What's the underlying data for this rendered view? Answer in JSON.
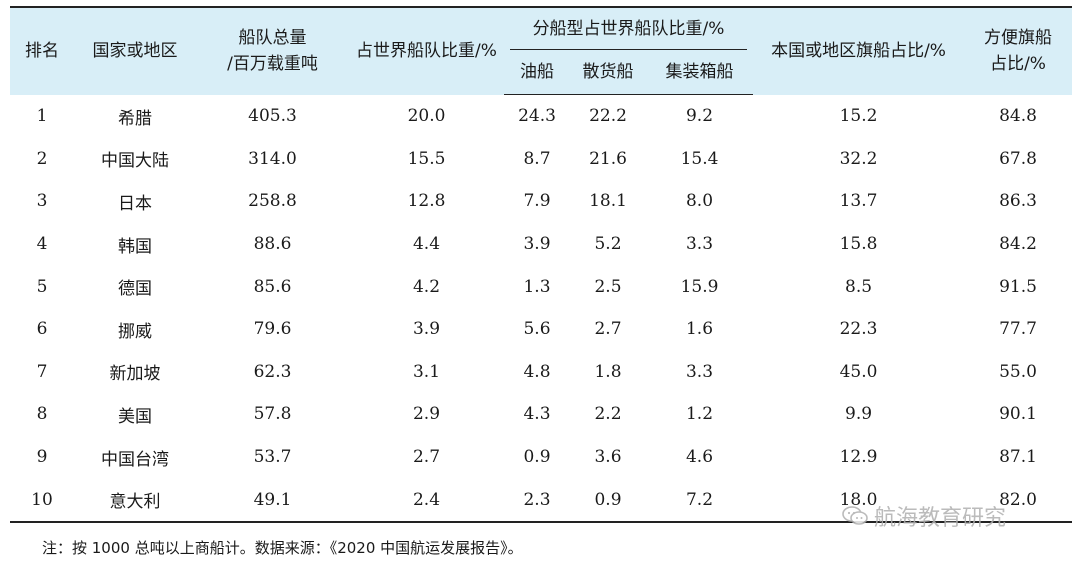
{
  "table": {
    "headers": {
      "rank": "排名",
      "country": "国家或地区",
      "fleet_total_line1": "船队总量",
      "fleet_total_line2": "/百万载重吨",
      "world_share": "占世界船队比重/%",
      "by_type_group": "分船型占世界船队比重/%",
      "tanker": "油船",
      "bulk": "散货船",
      "container": "集装箱船",
      "domestic_flag": "本国或地区旗船占比/%",
      "flag_conv_line1": "方便旗船",
      "flag_conv_line2": "占比/%"
    },
    "rows": [
      {
        "rank": "1",
        "country": "希腊",
        "fleet": "405.3",
        "share": "20.0",
        "tanker": "24.3",
        "bulk": "22.2",
        "container": "9.2",
        "domestic": "15.2",
        "foc": "84.8"
      },
      {
        "rank": "2",
        "country": "中国大陆",
        "fleet": "314.0",
        "share": "15.5",
        "tanker": "8.7",
        "bulk": "21.6",
        "container": "15.4",
        "domestic": "32.2",
        "foc": "67.8"
      },
      {
        "rank": "3",
        "country": "日本",
        "fleet": "258.8",
        "share": "12.8",
        "tanker": "7.9",
        "bulk": "18.1",
        "container": "8.0",
        "domestic": "13.7",
        "foc": "86.3"
      },
      {
        "rank": "4",
        "country": "韩国",
        "fleet": "88.6",
        "share": "4.4",
        "tanker": "3.9",
        "bulk": "5.2",
        "container": "3.3",
        "domestic": "15.8",
        "foc": "84.2"
      },
      {
        "rank": "5",
        "country": "德国",
        "fleet": "85.6",
        "share": "4.2",
        "tanker": "1.3",
        "bulk": "2.5",
        "container": "15.9",
        "domestic": "8.5",
        "foc": "91.5"
      },
      {
        "rank": "6",
        "country": "挪威",
        "fleet": "79.6",
        "share": "3.9",
        "tanker": "5.6",
        "bulk": "2.7",
        "container": "1.6",
        "domestic": "22.3",
        "foc": "77.7"
      },
      {
        "rank": "7",
        "country": "新加坡",
        "fleet": "62.3",
        "share": "3.1",
        "tanker": "4.8",
        "bulk": "1.8",
        "container": "3.3",
        "domestic": "45.0",
        "foc": "55.0"
      },
      {
        "rank": "8",
        "country": "美国",
        "fleet": "57.8",
        "share": "2.9",
        "tanker": "4.3",
        "bulk": "2.2",
        "container": "1.2",
        "domestic": "9.9",
        "foc": "90.1"
      },
      {
        "rank": "9",
        "country": "中国台湾",
        "fleet": "53.7",
        "share": "2.7",
        "tanker": "0.9",
        "bulk": "3.6",
        "container": "4.6",
        "domestic": "12.9",
        "foc": "87.1"
      },
      {
        "rank": "10",
        "country": "意大利",
        "fleet": "49.1",
        "share": "2.4",
        "tanker": "2.3",
        "bulk": "0.9",
        "container": "7.2",
        "domestic": "18.0",
        "foc": "82.0"
      }
    ]
  },
  "note": "注：按 1000 总吨以上商船计。数据来源：《2020 中国航运发展报告》。",
  "watermark": "航海教育研究"
}
